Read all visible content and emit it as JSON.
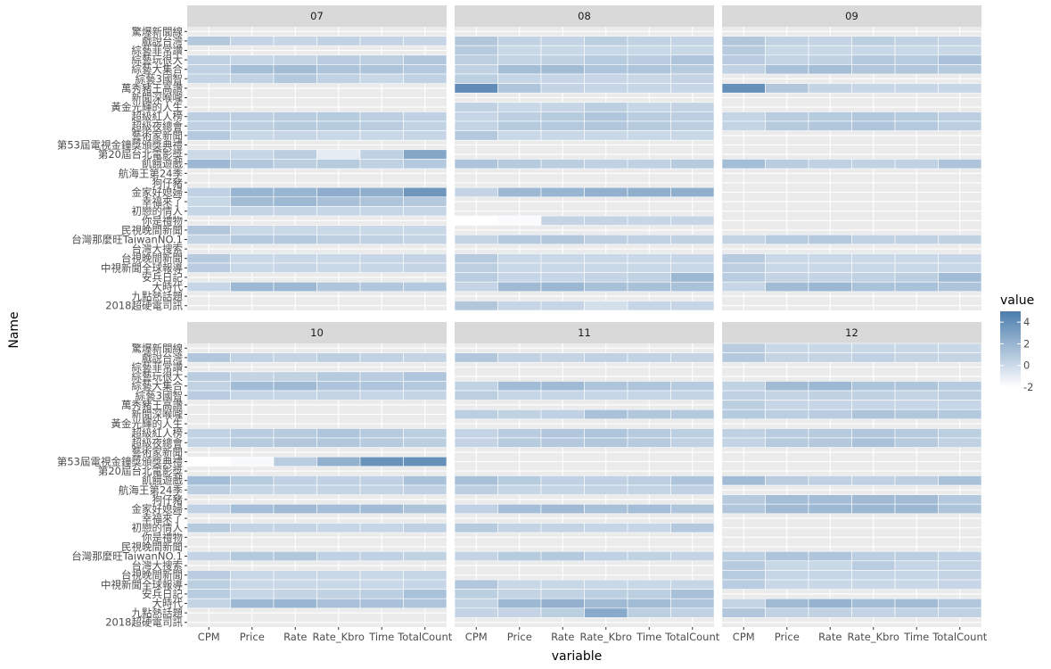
{
  "chart_data": {
    "type": "heatmap",
    "xlabel": "variable",
    "ylabel": "Name",
    "x_categories": [
      "CPM",
      "Price",
      "Rate",
      "Rate_Kbro",
      "Time",
      "TotalCount"
    ],
    "y_categories": [
      "驚爆新聞線",
      "戲說台灣",
      "綜藝菲常讚",
      "綜藝玩很大",
      "綜藝大集合",
      "綜藝3國智",
      "萬秀豬王高讚",
      "新聞深喉嚨",
      "黃金光輝的人生",
      "超級紅人榜",
      "超級夜總會",
      "藝術家新聞",
      "第53屆電視金鐘獎頒獎典禮",
      "第20屆台北電影獎",
      "飢餓遊戲",
      "航海王第24季",
      "狗仔豬",
      "金家好媳婦",
      "幸福來了",
      "初戀的情人",
      "你是禮物",
      "民視晚間新聞",
      "台灣那麼旺TaiwanNO.1",
      "台灣大搜索",
      "台視晚間新聞",
      "中視新聞全球報導",
      "安兵日記",
      "大時代",
      "九點熱話題",
      "2018超硬電司訊"
    ],
    "legend": {
      "title": "value",
      "position": "right",
      "ticks": [
        4,
        2,
        0,
        -2
      ],
      "min": -2,
      "max": 5,
      "low_color": "#ffffff",
      "high_color": "#4b7dae"
    },
    "grid": true,
    "panels": [
      {
        "label": "07",
        "rows": {
          "戲說台灣": [
            0.9,
            0.3,
            0.2,
            0.4,
            0.3,
            0.2
          ],
          "綜藝玩很大": [
            0.5,
            0.2,
            0.3,
            0.7,
            0.6,
            1.0
          ],
          "綜藝大集合": [
            0.5,
            1.5,
            1.6,
            1.2,
            1.2,
            0.9
          ],
          "綜藝3國智": [
            0.3,
            0.4,
            0.9,
            0.5,
            0.1,
            0.5
          ],
          "超級紅人榜": [
            0.6,
            0.6,
            0.7,
            0.8,
            0.6,
            0.5
          ],
          "超級夜總會": [
            0.5,
            0.6,
            0.8,
            0.8,
            0.7,
            0.4
          ],
          "藝術家新聞": [
            0.9,
            0.1,
            0.2,
            0.1,
            0.1,
            0.2
          ],
          "第20屆台北電影獎": [
            0.0,
            0.2,
            0.6,
            -1.0,
            0.5,
            2.8
          ],
          "飢餓遊戲": [
            1.8,
            1.0,
            0.6,
            0.8,
            0.5,
            0.9
          ],
          "金家好媳婦": [
            0.5,
            2.0,
            2.0,
            2.4,
            2.3,
            3.6
          ],
          "幸福來了": [
            0.1,
            1.6,
            1.8,
            1.4,
            1.2,
            0.9
          ],
          "初戀的情人": [
            0.2,
            0.3,
            0.3,
            0.2,
            0.2,
            0.2
          ],
          "民視晚間新聞": [
            1.0,
            0.1,
            0.1,
            0.1,
            0.1,
            0.1
          ],
          "台灣那麼旺TaiwanNO.1": [
            0.3,
            0.9,
            0.9,
            0.6,
            0.5,
            0.3
          ],
          "台視晚間新聞": [
            0.8,
            0.1,
            0.1,
            0.1,
            0.2,
            0.3
          ],
          "中視新聞全球報導": [
            0.7,
            0.1,
            0.2,
            0.1,
            0.2,
            0.3
          ],
          "大時代": [
            0.2,
            1.8,
            1.8,
            1.1,
            1.0,
            0.9
          ]
        }
      },
      {
        "label": "08",
        "rows": {
          "戲說台灣": [
            1.0,
            0.4,
            0.3,
            0.6,
            0.4,
            0.3
          ],
          "綜藝菲常讚": [
            0.8,
            0.1,
            0.1,
            0.1,
            0.1,
            0.1
          ],
          "綜藝玩很大": [
            0.6,
            0.3,
            0.4,
            0.8,
            0.7,
            1.2
          ],
          "綜藝大集合": [
            0.4,
            1.5,
            1.6,
            1.1,
            1.1,
            0.8
          ],
          "綜藝3國智": [
            0.6,
            0.2,
            0.2,
            0.2,
            0.1,
            0.3
          ],
          "萬秀豬王高讚": [
            4.2,
            1.1,
            0.3,
            0.2,
            0.2,
            0.2
          ],
          "黃金光輝的人生": [
            0.4,
            0.1,
            0.2,
            0.6,
            0.2,
            0.3
          ],
          "超級紅人榜": [
            0.2,
            0.6,
            0.8,
            1.1,
            0.7,
            0.6
          ],
          "超級夜總會": [
            0.3,
            0.8,
            0.9,
            1.0,
            0.8,
            0.6
          ],
          "藝術家新聞": [
            0.9,
            0.1,
            0.1,
            0.1,
            0.1,
            0.1
          ],
          "飢餓遊戲": [
            1.2,
            0.8,
            0.6,
            0.5,
            0.5,
            0.8
          ],
          "金家好媳婦": [
            0.3,
            1.8,
            2.0,
            2.2,
            2.3,
            2.3
          ],
          "你是禮物": [
            -2.0,
            -1.8,
            0.3,
            0.3,
            0.2,
            0.2
          ],
          "台灣那麼旺TaiwanNO.1": [
            0.3,
            0.9,
            1.0,
            0.6,
            0.5,
            0.4
          ],
          "台視晚間新聞": [
            0.8,
            0.1,
            0.1,
            0.1,
            0.1,
            0.2
          ],
          "中視新聞全球報導": [
            0.6,
            0.1,
            0.1,
            0.1,
            0.1,
            0.1
          ],
          "安兵日記": [
            0.7,
            0.2,
            0.2,
            0.3,
            0.4,
            1.8
          ],
          "大時代": [
            0.3,
            1.7,
            1.9,
            1.4,
            1.4,
            1.3
          ],
          "2018超硬電司訊": [
            1.0,
            0.2,
            0.2,
            -0.3,
            0.2,
            0.2
          ]
        }
      },
      {
        "label": "09",
        "rows": {
          "戲說台灣": [
            1.0,
            0.4,
            0.3,
            0.6,
            0.4,
            0.3
          ],
          "綜藝菲常讚": [
            0.8,
            0.1,
            0.1,
            0.1,
            0.1,
            0.1
          ],
          "綜藝玩很大": [
            0.7,
            0.3,
            0.4,
            0.9,
            0.8,
            1.3
          ],
          "綜藝大集合": [
            0.4,
            1.4,
            1.5,
            1.0,
            1.0,
            0.8
          ],
          "萬秀豬王高讚": [
            4.0,
            1.0,
            0.3,
            0.2,
            0.2,
            0.2
          ],
          "超級紅人榜": [
            0.3,
            0.7,
            0.8,
            1.0,
            0.8,
            0.6
          ],
          "超級夜總會": [
            0.3,
            0.8,
            1.0,
            1.1,
            0.9,
            0.6
          ],
          "飢餓遊戲": [
            1.5,
            0.7,
            0.5,
            0.4,
            0.5,
            1.2
          ],
          "台灣那麼旺TaiwanNO.1": [
            0.3,
            0.8,
            0.9,
            0.5,
            0.5,
            0.4
          ],
          "台視晚間新聞": [
            0.8,
            0.1,
            0.1,
            0.1,
            0.1,
            0.2
          ],
          "中視新聞全球報導": [
            0.6,
            0.1,
            0.1,
            0.1,
            0.1,
            0.1
          ],
          "安兵日記": [
            0.7,
            0.3,
            0.3,
            0.4,
            0.6,
            1.6
          ],
          "大時代": [
            0.2,
            1.6,
            1.9,
            1.3,
            1.3,
            1.2
          ]
        }
      },
      {
        "label": "10",
        "rows": {
          "戲說台灣": [
            1.0,
            0.4,
            0.3,
            0.6,
            0.4,
            0.3
          ],
          "綜藝玩很大": [
            0.7,
            0.3,
            0.4,
            0.8,
            0.7,
            1.1
          ],
          "綜藝大集合": [
            0.4,
            1.6,
            1.7,
            1.2,
            1.1,
            0.9
          ],
          "綜藝3國智": [
            0.7,
            0.2,
            0.2,
            0.3,
            0.2,
            0.3
          ],
          "超級紅人榜": [
            0.4,
            0.7,
            0.8,
            1.1,
            0.8,
            0.6
          ],
          "超級夜總會": [
            0.3,
            0.8,
            1.0,
            1.0,
            0.8,
            0.6
          ],
          "第53屆電視金鐘獎頒獎典禮": [
            -2.0,
            -1.7,
            0.7,
            2.2,
            3.8,
            4.0
          ],
          "飢餓遊戲": [
            1.5,
            0.8,
            0.5,
            0.5,
            0.5,
            1.3
          ],
          "航海王第24季": [
            0.6,
            0.2,
            0.2,
            0.3,
            0.3,
            0.5
          ],
          "金家好媳婦": [
            0.5,
            1.5,
            1.7,
            1.5,
            1.6,
            1.2
          ],
          "初戀的情人": [
            0.8,
            0.3,
            0.3,
            0.2,
            0.2,
            0.5
          ],
          "台灣那麼旺TaiwanNO.1": [
            0.3,
            0.9,
            1.0,
            0.5,
            0.5,
            0.4
          ],
          "台視晚間新聞": [
            0.7,
            0.1,
            0.1,
            0.1,
            0.1,
            0.2
          ],
          "中視新聞全球報導": [
            0.6,
            0.1,
            0.1,
            0.1,
            0.1,
            0.2
          ],
          "安兵日記": [
            0.7,
            0.2,
            0.3,
            0.4,
            0.6,
            1.3
          ],
          "大時代": [
            0.3,
            1.8,
            2.0,
            1.4,
            1.3,
            1.2
          ]
        }
      },
      {
        "label": "11",
        "rows": {
          "戲說台灣": [
            1.0,
            0.4,
            0.3,
            0.5,
            0.4,
            0.3
          ],
          "綜藝大集合": [
            0.4,
            1.6,
            1.7,
            1.2,
            1.1,
            0.8
          ],
          "綜藝3國智": [
            0.6,
            0.2,
            0.2,
            0.2,
            0.2,
            0.3
          ],
          "新聞深喉嚨": [
            0.6,
            0.4,
            0.5,
            1.3,
            1.0,
            0.9
          ],
          "超級紅人榜": [
            0.3,
            0.7,
            1.0,
            1.1,
            0.8,
            0.6
          ],
          "超級夜總會": [
            0.3,
            0.8,
            0.9,
            1.0,
            0.8,
            0.5
          ],
          "飢餓遊戲": [
            1.4,
            0.8,
            0.5,
            0.5,
            0.6,
            1.2
          ],
          "航海王第24季": [
            0.6,
            0.2,
            0.2,
            0.3,
            0.3,
            0.5
          ],
          "金家好媳婦": [
            0.5,
            1.5,
            1.7,
            1.4,
            1.5,
            1.1
          ],
          "初戀的情人": [
            0.8,
            0.3,
            0.3,
            0.2,
            0.2,
            0.9
          ],
          "台灣那麼旺TaiwanNO.1": [
            0.3,
            0.8,
            0.9,
            0.5,
            0.4,
            0.3
          ],
          "中視新聞全球報導": [
            1.0,
            0.1,
            0.1,
            0.1,
            0.1,
            0.2
          ],
          "安兵日記": [
            0.6,
            0.3,
            0.4,
            0.6,
            0.6,
            1.4
          ],
          "大時代": [
            0.3,
            1.8,
            2.2,
            1.7,
            1.6,
            1.1
          ],
          "九點熱話題": [
            0.3,
            0.3,
            0.6,
            2.6,
            0.6,
            0.5
          ]
        }
      },
      {
        "label": "12",
        "rows": {
          "驚爆新聞線": [
            0.7,
            0.1,
            0.1,
            0.1,
            0.1,
            0.1
          ],
          "戲說台灣": [
            0.9,
            0.3,
            0.3,
            0.5,
            0.3,
            0.3
          ],
          "綜藝大集合": [
            0.4,
            1.7,
            1.8,
            1.2,
            1.1,
            0.8
          ],
          "綜藝3國智": [
            0.5,
            0.3,
            0.4,
            0.4,
            0.3,
            0.6
          ],
          "萬秀豬王高讚": [
            0.6,
            0.2,
            0.2,
            0.2,
            0.2,
            0.2
          ],
          "新聞深喉嚨": [
            0.8,
            0.6,
            0.7,
            1.2,
            1.0,
            0.9
          ],
          "超級紅人榜": [
            0.5,
            0.7,
            0.8,
            1.0,
            0.8,
            0.6
          ],
          "超級夜總會": [
            0.3,
            0.8,
            0.9,
            1.3,
            0.8,
            0.5
          ],
          "飢餓遊戲": [
            1.6,
            0.7,
            0.5,
            0.5,
            0.6,
            1.3
          ],
          "狗仔豬": [
            0.8,
            1.5,
            1.5,
            1.7,
            1.6,
            0.9
          ],
          "金家好媳婦": [
            1.0,
            1.7,
            1.8,
            1.9,
            1.9,
            1.2
          ],
          "台灣那麼旺TaiwanNO.1": [
            0.6,
            1.2,
            1.1,
            0.6,
            0.6,
            0.5
          ],
          "台灣大搜索": [
            0.8,
            0.1,
            0.1,
            0.7,
            0.2,
            0.3
          ],
          "台視晚間新聞": [
            0.8,
            0.2,
            0.2,
            0.2,
            0.2,
            0.3
          ],
          "中視新聞全球報導": [
            0.7,
            0.1,
            0.1,
            0.1,
            0.1,
            0.2
          ],
          "大時代": [
            0.3,
            1.7,
            2.1,
            1.5,
            1.6,
            1.0
          ],
          "九點熱話題": [
            1.0,
            0.4,
            0.4,
            0.3,
            0.4,
            0.5
          ]
        }
      }
    ]
  }
}
